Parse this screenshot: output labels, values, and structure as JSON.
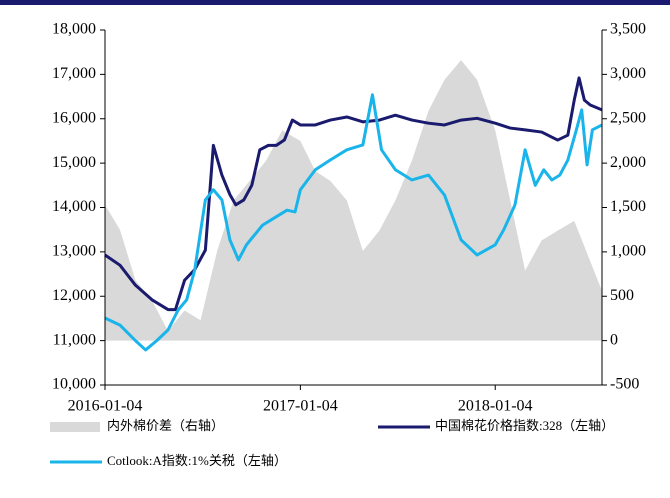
{
  "chart_data": {
    "type": "line",
    "xlim": [
      "2016-01-04",
      "2018-07-23"
    ],
    "xticks": [
      "2016-01-04",
      "2017-01-04",
      "2018-01-04"
    ],
    "ylim": [
      10000,
      18000
    ],
    "yticks": [
      {
        "value": 10000,
        "label": "10,000"
      },
      {
        "value": 11000,
        "label": "11,000"
      },
      {
        "value": 12000,
        "label": "12,000"
      },
      {
        "value": 13000,
        "label": "13,000"
      },
      {
        "value": 14000,
        "label": "14,000"
      },
      {
        "value": 15000,
        "label": "15,000"
      },
      {
        "value": 16000,
        "label": "16,000"
      },
      {
        "value": 17000,
        "label": "17,000"
      },
      {
        "value": 18000,
        "label": "18,000"
      }
    ],
    "y2lim": [
      -500,
      3500
    ],
    "y2ticks": [
      -500,
      0,
      500,
      {
        "value": 1000,
        "label": "1,000"
      },
      {
        "value": 1500,
        "label": "1,500"
      },
      {
        "value": 2000,
        "label": "2,000"
      },
      {
        "value": 2500,
        "label": "2,500"
      },
      {
        "value": 3000,
        "label": "3,000"
      },
      {
        "value": 3500,
        "label": "3,500"
      }
    ],
    "series": [
      {
        "name": "内外棉价差（右轴）",
        "type": "area",
        "axis": "y2",
        "color": "#d9d9d9",
        "x": [
          "2016-01-04",
          "2016-02-01",
          "2016-03-01",
          "2016-04-01",
          "2016-05-01",
          "2016-06-01",
          "2016-07-01",
          "2016-08-01",
          "2016-09-01",
          "2016-10-01",
          "2016-11-01",
          "2016-12-01",
          "2017-01-04",
          "2017-02-01",
          "2017-03-01",
          "2017-04-01",
          "2017-05-01",
          "2017-06-01",
          "2017-07-01",
          "2017-08-01",
          "2017-09-01",
          "2017-10-01",
          "2017-11-01",
          "2017-12-01",
          "2018-01-04",
          "2018-02-01",
          "2018-03-01",
          "2018-04-01",
          "2018-05-01",
          "2018-06-01",
          "2018-07-23"
        ],
        "values": [
          1530,
          1250,
          680,
          450,
          110,
          340,
          230,
          1010,
          1580,
          1800,
          2030,
          2370,
          2250,
          1910,
          1800,
          1580,
          1010,
          1240,
          1580,
          2030,
          2590,
          2940,
          3160,
          2940,
          2370,
          1580,
          790,
          1130,
          1240,
          1350,
          560
        ]
      },
      {
        "name": "中国棉花价格指数:328（左轴）",
        "color": "#1a1a6e",
        "x": [
          "2016-01-04",
          "2016-02-01",
          "2016-03-01",
          "2016-04-01",
          "2016-05-01",
          "2016-05-15",
          "2016-06-01",
          "2016-06-20",
          "2016-07-10",
          "2016-07-25",
          "2016-08-10",
          "2016-08-25",
          "2016-09-05",
          "2016-09-20",
          "2016-10-05",
          "2016-10-20",
          "2016-11-05",
          "2016-11-20",
          "2016-12-05",
          "2016-12-20",
          "2017-01-04",
          "2017-02-01",
          "2017-03-01",
          "2017-04-01",
          "2017-05-01",
          "2017-06-01",
          "2017-07-01",
          "2017-08-01",
          "2017-09-01",
          "2017-10-01",
          "2017-11-01",
          "2017-12-01",
          "2018-01-04",
          "2018-02-01",
          "2018-03-01",
          "2018-04-01",
          "2018-05-01",
          "2018-05-20",
          "2018-06-01",
          "2018-06-10",
          "2018-06-20",
          "2018-07-01",
          "2018-07-23"
        ],
        "values": [
          12930,
          12700,
          12250,
          11920,
          11700,
          11700,
          12360,
          12600,
          13040,
          15400,
          14730,
          14290,
          14060,
          14170,
          14500,
          15300,
          15400,
          15400,
          15520,
          15970,
          15860,
          15860,
          15970,
          16040,
          15930,
          15970,
          16080,
          15970,
          15900,
          15860,
          15970,
          16010,
          15900,
          15790,
          15750,
          15700,
          15520,
          15630,
          16420,
          16920,
          16420,
          16310,
          16200
        ]
      },
      {
        "name": "Cotlook:A指数:1%关税（左轴）",
        "color": "#19b4ea",
        "x": [
          "2016-01-04",
          "2016-02-01",
          "2016-03-01",
          "2016-03-20",
          "2016-04-10",
          "2016-05-01",
          "2016-05-20",
          "2016-06-05",
          "2016-06-20",
          "2016-07-10",
          "2016-07-25",
          "2016-08-10",
          "2016-08-25",
          "2016-09-10",
          "2016-09-25",
          "2016-10-10",
          "2016-10-25",
          "2016-11-10",
          "2016-11-25",
          "2016-12-10",
          "2016-12-25",
          "2017-01-04",
          "2017-02-01",
          "2017-03-01",
          "2017-04-01",
          "2017-05-01",
          "2017-05-19",
          "2017-06-05",
          "2017-07-01",
          "2017-08-01",
          "2017-09-01",
          "2017-10-01",
          "2017-11-01",
          "2017-12-01",
          "2018-01-04",
          "2018-01-20",
          "2018-02-10",
          "2018-03-01",
          "2018-03-20",
          "2018-04-05",
          "2018-04-20",
          "2018-05-05",
          "2018-05-20",
          "2018-06-05",
          "2018-06-15",
          "2018-06-25",
          "2018-07-05",
          "2018-07-23"
        ],
        "values": [
          11510,
          11350,
          11000,
          10790,
          11000,
          11240,
          11690,
          11920,
          12590,
          14170,
          14400,
          14170,
          13270,
          12820,
          13160,
          13380,
          13600,
          13720,
          13830,
          13940,
          13900,
          14400,
          14850,
          15070,
          15300,
          15410,
          16540,
          15300,
          14850,
          14620,
          14730,
          14280,
          13270,
          12930,
          13160,
          13500,
          14060,
          15300,
          14500,
          14850,
          14620,
          14730,
          15070,
          15750,
          16200,
          14960,
          15750,
          15860
        ]
      }
    ]
  }
}
